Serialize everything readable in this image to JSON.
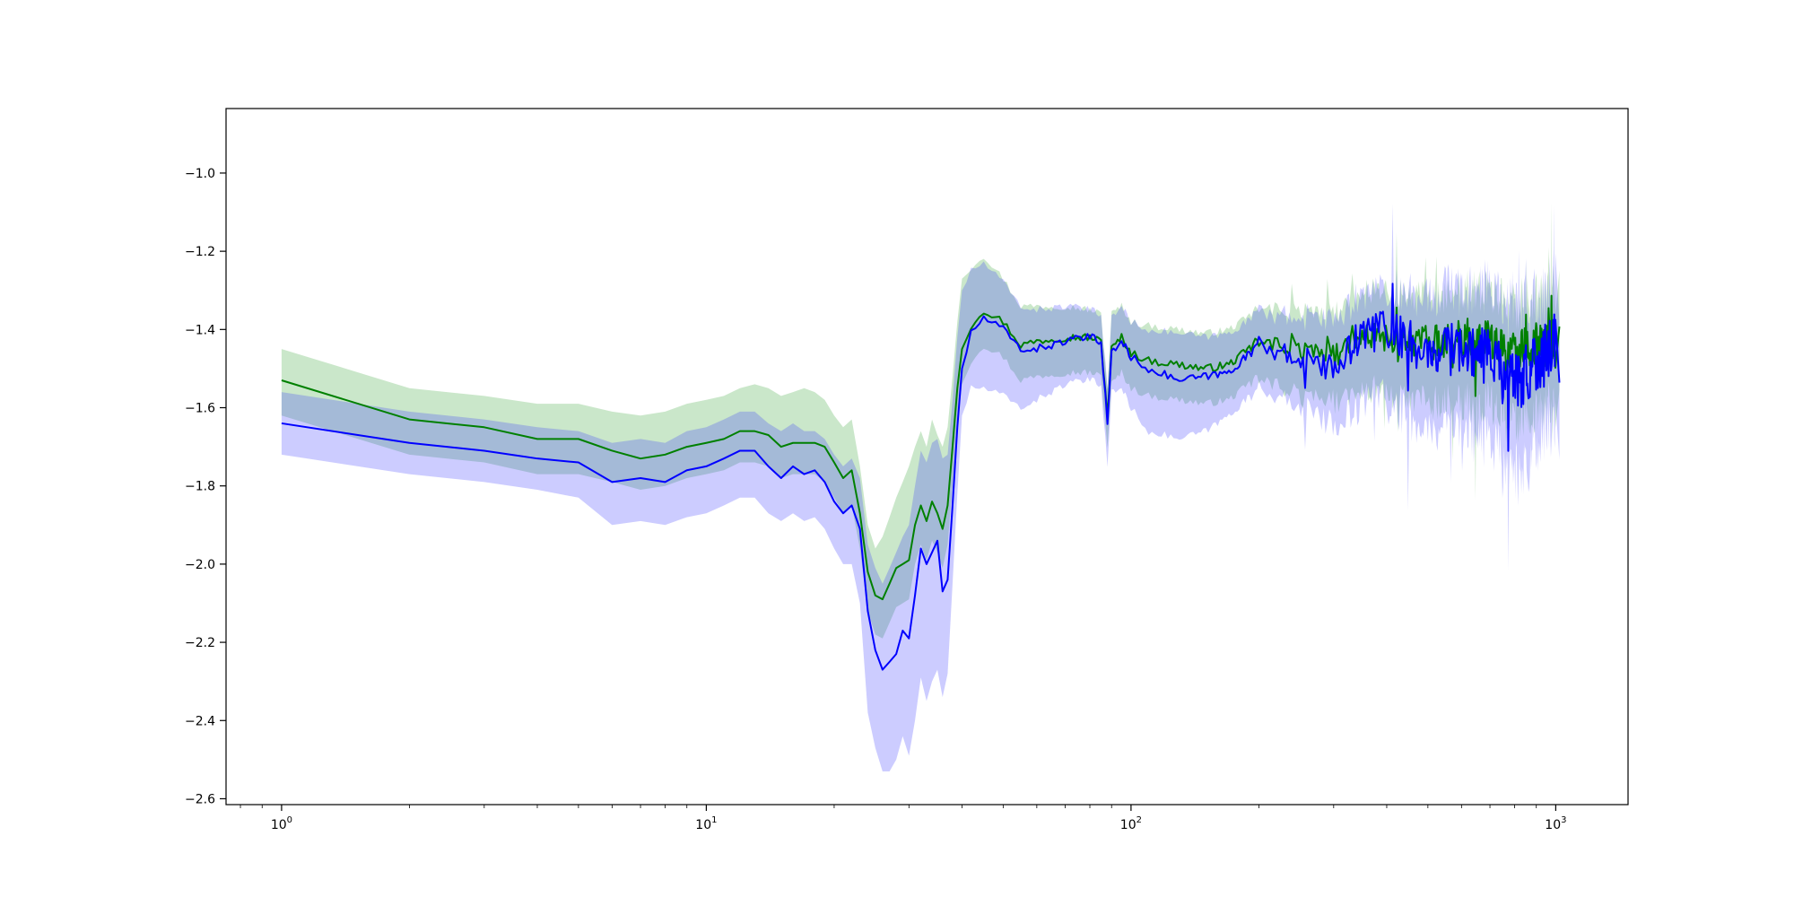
{
  "chart_data": {
    "type": "line",
    "title": "",
    "xlabel": "",
    "ylabel": "",
    "xscale": "log",
    "xlim": [
      0.74,
      1480
    ],
    "ylim": [
      -2.615,
      -0.835
    ],
    "grid": false,
    "legend": null,
    "x_ticks": [
      {
        "value": 1,
        "base": "10",
        "exp": "0"
      },
      {
        "value": 10,
        "base": "10",
        "exp": "1"
      },
      {
        "value": 100,
        "base": "10",
        "exp": "2"
      },
      {
        "value": 1000,
        "base": "10",
        "exp": "3"
      }
    ],
    "y_ticks": [
      {
        "value": -1.0,
        "label": "−1.0"
      },
      {
        "value": -1.2,
        "label": "−1.2"
      },
      {
        "value": -1.4,
        "label": "−1.4"
      },
      {
        "value": -1.6,
        "label": "−1.6"
      },
      {
        "value": -1.8,
        "label": "−1.8"
      },
      {
        "value": -2.0,
        "label": "−2.0"
      },
      {
        "value": -2.2,
        "label": "−2.2"
      },
      {
        "value": -2.4,
        "label": "−2.4"
      },
      {
        "value": -2.6,
        "label": "−2.6"
      }
    ],
    "series": [
      {
        "color": "#008000",
        "band_color": "#2ca02c",
        "band_opacity": 0.25,
        "noise_band": 0.09,
        "noise_line": 0.05,
        "x": [
          1,
          2,
          3,
          4,
          5,
          6,
          7,
          8,
          9,
          10,
          11,
          12,
          13,
          14,
          15,
          16,
          17,
          18,
          19,
          20,
          21,
          22,
          23,
          24,
          25,
          26,
          27,
          28,
          29,
          30,
          31,
          32,
          33,
          34,
          35,
          36,
          37,
          38,
          39,
          40,
          42,
          45,
          50,
          55,
          60,
          70,
          80,
          85,
          88,
          90,
          95,
          100,
          110,
          130,
          150,
          170,
          200,
          250,
          300,
          350,
          400,
          500,
          600,
          700,
          800,
          900,
          1000
        ],
        "y": [
          -1.53,
          -1.63,
          -1.65,
          -1.68,
          -1.68,
          -1.71,
          -1.73,
          -1.72,
          -1.7,
          -1.69,
          -1.68,
          -1.66,
          -1.66,
          -1.67,
          -1.7,
          -1.69,
          -1.69,
          -1.69,
          -1.7,
          -1.74,
          -1.78,
          -1.76,
          -1.87,
          -2.02,
          -2.08,
          -2.09,
          -2.05,
          -2.01,
          -2.0,
          -1.99,
          -1.9,
          -1.85,
          -1.89,
          -1.84,
          -1.87,
          -1.91,
          -1.85,
          -1.7,
          -1.55,
          -1.45,
          -1.39,
          -1.35,
          -1.38,
          -1.44,
          -1.43,
          -1.42,
          -1.42,
          -1.43,
          -1.62,
          -1.45,
          -1.42,
          -1.46,
          -1.48,
          -1.49,
          -1.5,
          -1.49,
          -1.43,
          -1.45,
          -1.47,
          -1.42,
          -1.42,
          -1.44,
          -1.42,
          -1.43,
          -1.47,
          -1.44,
          -1.44
        ],
        "lower": [
          -1.62,
          -1.72,
          -1.74,
          -1.77,
          -1.77,
          -1.79,
          -1.81,
          -1.8,
          -1.78,
          -1.77,
          -1.76,
          -1.74,
          -1.74,
          -1.75,
          -1.78,
          -1.77,
          -1.77,
          -1.77,
          -1.79,
          -1.83,
          -1.87,
          -1.85,
          -1.96,
          -2.12,
          -2.18,
          -2.19,
          -2.15,
          -2.11,
          -2.1,
          -2.09,
          -2.0,
          -1.95,
          -1.99,
          -1.94,
          -1.97,
          -2.01,
          -1.95,
          -1.8,
          -1.65,
          -1.54,
          -1.48,
          -1.44,
          -1.47,
          -1.53,
          -1.52,
          -1.51,
          -1.51,
          -1.52,
          -1.7,
          -1.54,
          -1.51,
          -1.55,
          -1.57,
          -1.58,
          -1.59,
          -1.58,
          -1.52,
          -1.56,
          -1.58,
          -1.55,
          -1.55,
          -1.58,
          -1.57,
          -1.58,
          -1.63,
          -1.6,
          -1.58
        ],
        "upper": [
          -1.45,
          -1.55,
          -1.57,
          -1.59,
          -1.59,
          -1.61,
          -1.62,
          -1.61,
          -1.59,
          -1.58,
          -1.57,
          -1.55,
          -1.54,
          -1.55,
          -1.57,
          -1.56,
          -1.55,
          -1.56,
          -1.58,
          -1.62,
          -1.65,
          -1.63,
          -1.75,
          -1.9,
          -1.96,
          -1.93,
          -1.88,
          -1.83,
          -1.79,
          -1.75,
          -1.7,
          -1.66,
          -1.7,
          -1.63,
          -1.67,
          -1.7,
          -1.65,
          -1.52,
          -1.38,
          -1.27,
          -1.24,
          -1.21,
          -1.27,
          -1.34,
          -1.34,
          -1.34,
          -1.35,
          -1.36,
          -1.55,
          -1.36,
          -1.34,
          -1.38,
          -1.39,
          -1.4,
          -1.41,
          -1.4,
          -1.35,
          -1.36,
          -1.37,
          -1.32,
          -1.32,
          -1.33,
          -1.31,
          -1.32,
          -1.36,
          -1.33,
          -1.32
        ]
      },
      {
        "color": "#0000ff",
        "band_color": "#3333ff",
        "band_opacity": 0.25,
        "noise_band": 0.12,
        "noise_line": 0.07,
        "x": [
          1,
          2,
          3,
          4,
          5,
          6,
          7,
          8,
          9,
          10,
          11,
          12,
          13,
          14,
          15,
          16,
          17,
          18,
          19,
          20,
          21,
          22,
          23,
          24,
          25,
          26,
          27,
          28,
          29,
          30,
          31,
          32,
          33,
          34,
          35,
          36,
          37,
          38,
          39,
          40,
          42,
          45,
          50,
          55,
          60,
          70,
          80,
          85,
          88,
          90,
          95,
          100,
          110,
          130,
          150,
          170,
          200,
          250,
          300,
          350,
          400,
          500,
          600,
          700,
          800,
          900,
          1000
        ],
        "y": [
          -1.64,
          -1.69,
          -1.71,
          -1.73,
          -1.74,
          -1.79,
          -1.78,
          -1.79,
          -1.76,
          -1.75,
          -1.73,
          -1.71,
          -1.71,
          -1.75,
          -1.78,
          -1.75,
          -1.77,
          -1.76,
          -1.79,
          -1.84,
          -1.87,
          -1.85,
          -1.91,
          -2.12,
          -2.22,
          -2.27,
          -2.25,
          -2.23,
          -2.17,
          -2.19,
          -2.08,
          -1.96,
          -2.0,
          -1.97,
          -1.94,
          -2.07,
          -2.04,
          -1.85,
          -1.65,
          -1.5,
          -1.41,
          -1.37,
          -1.4,
          -1.45,
          -1.45,
          -1.43,
          -1.42,
          -1.43,
          -1.64,
          -1.46,
          -1.43,
          -1.47,
          -1.5,
          -1.53,
          -1.52,
          -1.51,
          -1.44,
          -1.47,
          -1.5,
          -1.41,
          -1.4,
          -1.46,
          -1.44,
          -1.47,
          -1.55,
          -1.47,
          -1.45
        ],
        "lower": [
          -1.72,
          -1.77,
          -1.79,
          -1.81,
          -1.83,
          -1.9,
          -1.89,
          -1.9,
          -1.88,
          -1.87,
          -1.85,
          -1.83,
          -1.83,
          -1.87,
          -1.89,
          -1.87,
          -1.89,
          -1.88,
          -1.91,
          -1.96,
          -2.0,
          -2.0,
          -2.1,
          -2.38,
          -2.47,
          -2.53,
          -2.53,
          -2.5,
          -2.44,
          -2.49,
          -2.4,
          -2.29,
          -2.35,
          -2.3,
          -2.27,
          -2.34,
          -2.28,
          -2.05,
          -1.82,
          -1.62,
          -1.55,
          -1.55,
          -1.57,
          -1.6,
          -1.58,
          -1.54,
          -1.53,
          -1.54,
          -1.75,
          -1.56,
          -1.55,
          -1.6,
          -1.66,
          -1.68,
          -1.66,
          -1.62,
          -1.55,
          -1.58,
          -1.64,
          -1.58,
          -1.57,
          -1.64,
          -1.63,
          -1.66,
          -1.77,
          -1.66,
          -1.62
        ],
        "upper": [
          -1.56,
          -1.61,
          -1.63,
          -1.65,
          -1.66,
          -1.69,
          -1.68,
          -1.69,
          -1.66,
          -1.65,
          -1.63,
          -1.61,
          -1.61,
          -1.64,
          -1.66,
          -1.64,
          -1.66,
          -1.66,
          -1.68,
          -1.72,
          -1.75,
          -1.73,
          -1.78,
          -1.95,
          -2.01,
          -2.05,
          -2.01,
          -1.97,
          -1.93,
          -1.9,
          -1.8,
          -1.71,
          -1.74,
          -1.69,
          -1.68,
          -1.73,
          -1.72,
          -1.58,
          -1.42,
          -1.3,
          -1.25,
          -1.23,
          -1.28,
          -1.34,
          -1.35,
          -1.34,
          -1.35,
          -1.36,
          -1.55,
          -1.37,
          -1.34,
          -1.38,
          -1.4,
          -1.41,
          -1.42,
          -1.41,
          -1.36,
          -1.37,
          -1.38,
          -1.32,
          -1.32,
          -1.33,
          -1.31,
          -1.32,
          -1.37,
          -1.33,
          -1.32
        ]
      }
    ]
  }
}
